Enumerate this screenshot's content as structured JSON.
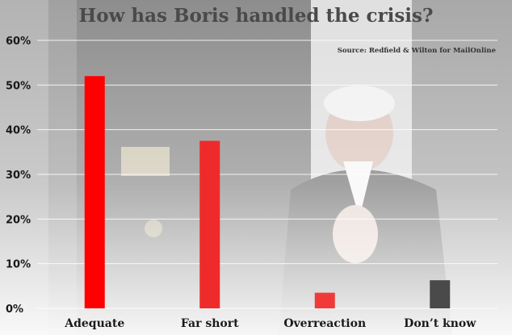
{
  "chart_data": {
    "type": "bar",
    "title": "How has Boris handled the crisis?",
    "subtitle": "Source: Redfield & Wilton for MailOnline",
    "categories": [
      "Adequate",
      "Far short",
      "Overreaction",
      "Don’t know"
    ],
    "values": [
      52,
      37.5,
      3.5,
      6.3
    ],
    "colors": [
      "#ff0000",
      "#ef2a2a",
      "#f03a3a",
      "#4a4a4a"
    ],
    "yticks": [
      "0%",
      "10%",
      "20%",
      "30%",
      "40%",
      "50%",
      "60%"
    ],
    "ylim": [
      0,
      60
    ],
    "xlabel": "",
    "ylabel": "",
    "grid": true,
    "legend": "none"
  }
}
